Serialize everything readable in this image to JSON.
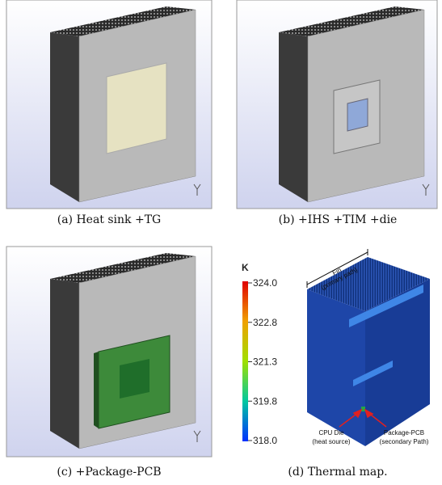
{
  "panels": [
    {
      "caption": "(a) Heat sink +TG"
    },
    {
      "caption": "(b) +IHS +TIM +die"
    },
    {
      "caption": "(c) +Package-PCB"
    },
    {
      "caption": "(d) Thermal map."
    }
  ],
  "colorbar": {
    "unit": "K",
    "ticks": [
      "324.0",
      "322.8",
      "321.3",
      "319.8",
      "318.0"
    ]
  },
  "annotations": {
    "fin": [
      "Fin",
      "(primary path)"
    ],
    "cpu_die": [
      "CPU Die",
      "(heat source)"
    ],
    "package_pcb": [
      "Package-PCB",
      "(secondary Path)"
    ]
  }
}
